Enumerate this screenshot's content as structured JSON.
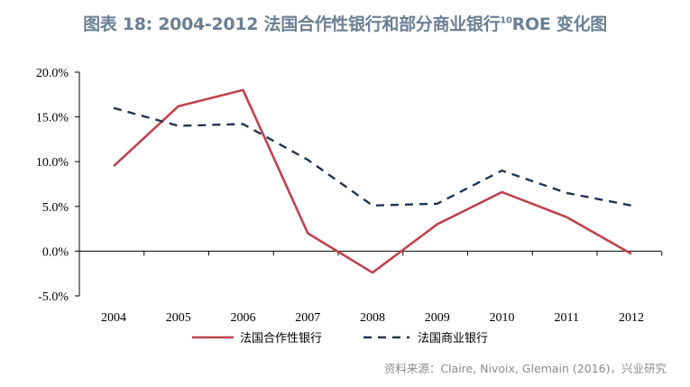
{
  "title": {
    "main": "图表 18: 2004-2012 法国合作性银行和部分商业银行",
    "superscript": "10",
    "suffix": "ROE 变化图"
  },
  "source": "资料来源：Claire, Nivoix, Glemain (2016)，兴业研究",
  "colors": {
    "cooperative": "#c0414f",
    "commercial": "#24344d",
    "title": "#6b7f94"
  },
  "chart_data": {
    "type": "line",
    "title": "图表 18: 2004-2012 法国合作性银行和部分商业银行10ROE 变化图",
    "categories": [
      "2004",
      "2005",
      "2006",
      "2007",
      "2008",
      "2009",
      "2010",
      "2011",
      "2012"
    ],
    "y_ticks": [
      "20.0%",
      "15.0%",
      "10.0%",
      "5.0%",
      "0.0%",
      "-5.0%"
    ],
    "ylim": [
      -5,
      20
    ],
    "y_unit": "%",
    "grid": false,
    "legend_position": "bottom",
    "series": [
      {
        "name": "法国合作性银行",
        "style": "solid",
        "color": "#c0414f",
        "values": [
          9.5,
          16.2,
          18.0,
          2.0,
          -2.4,
          3.0,
          6.6,
          3.8,
          -0.3
        ]
      },
      {
        "name": "法国商业银行",
        "style": "dashed",
        "color": "#24344d",
        "values": [
          16.0,
          14.0,
          14.2,
          10.2,
          5.1,
          5.3,
          9.0,
          6.5,
          5.1
        ]
      }
    ]
  }
}
